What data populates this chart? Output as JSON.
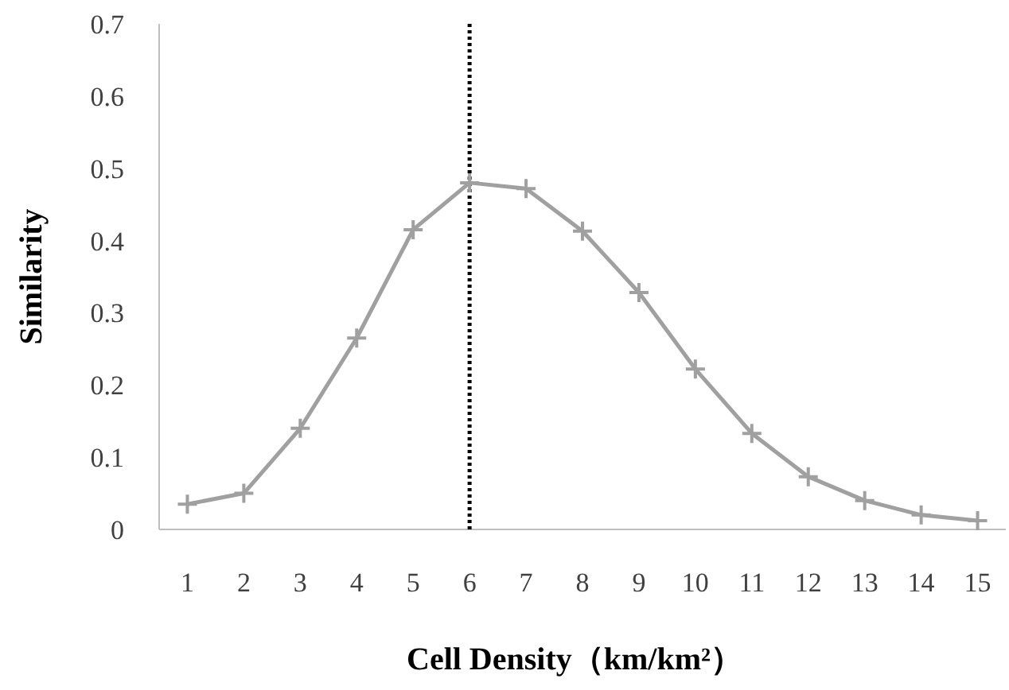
{
  "chart_data": {
    "type": "line",
    "xlabel": "Cell Density（km/km²）",
    "ylabel": "Similarity",
    "x": [
      1,
      2,
      3,
      4,
      5,
      6,
      7,
      8,
      9,
      10,
      11,
      12,
      13,
      14,
      15
    ],
    "series": [
      {
        "color": "#a0a0a0",
        "values": [
          0.035,
          0.05,
          0.14,
          0.265,
          0.415,
          0.48,
          0.472,
          0.413,
          0.328,
          0.222,
          0.133,
          0.073,
          0.04,
          0.02,
          0.012
        ]
      }
    ],
    "xlim": [
      0.5,
      15.5
    ],
    "xticks": [
      1,
      2,
      3,
      4,
      5,
      6,
      7,
      8,
      9,
      10,
      11,
      12,
      13,
      14,
      15
    ],
    "ylim": [
      0,
      0.7
    ],
    "yticks": [
      0,
      0.1,
      0.2,
      0.3,
      0.4,
      0.5,
      0.6,
      0.7
    ],
    "ref_lines": [
      {
        "axis": "x",
        "value": 6,
        "color": "#000000",
        "line_style": "dotted"
      }
    ],
    "marker": "cross",
    "line_style": "solid",
    "grid": false
  }
}
